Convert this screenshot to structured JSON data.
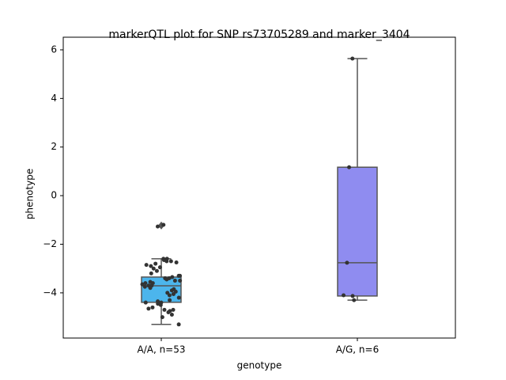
{
  "chart_data": {
    "type": "box",
    "title": "markerQTL plot for SNP rs73705289 and marker_3404",
    "xlabel": "genotype",
    "ylabel": "phenotype",
    "categories": [
      "A/A, n=53",
      "A/G, n=6"
    ],
    "ylim": [
      -5.86,
      6.52
    ],
    "yticks": [
      {
        "value": -4,
        "label": "−4"
      },
      {
        "value": -2,
        "label": "−2"
      },
      0,
      2,
      4,
      6
    ],
    "boxes": [
      {
        "whislo": -5.3,
        "q1": -4.39,
        "med": -3.71,
        "q3": -3.35,
        "whishi": -2.6,
        "fliers": [
          -1.23
        ],
        "color": "#4cb5ec"
      },
      {
        "whislo": -4.3,
        "q1": -4.13,
        "med": -2.76,
        "q3": 1.17,
        "whishi": 5.64,
        "fliers": [],
        "color": "#8f8cf0"
      }
    ],
    "points": [
      [
        -5.3,
        -5.0,
        -4.9,
        -4.8,
        -4.75,
        -4.7,
        -4.7,
        -4.65,
        -4.6,
        -4.5,
        -4.45,
        -4.4,
        -4.4,
        -4.35,
        -4.3,
        -4.2,
        -4.1,
        -4.05,
        -4.0,
        -3.95,
        -3.9,
        -3.85,
        -3.8,
        -3.75,
        -3.7,
        -3.7,
        -3.65,
        -3.6,
        -3.55,
        -3.5,
        -3.5,
        -3.45,
        -3.4,
        -3.4,
        -3.35,
        -3.3,
        -3.3,
        -3.2,
        -3.1,
        -3.0,
        -2.95,
        -2.9,
        -2.85,
        -2.8,
        -2.75,
        -2.7,
        -2.7,
        -2.65,
        -2.6,
        -2.6,
        -1.2,
        -1.27,
        -3.6
      ],
      [
        5.64,
        1.17,
        -2.76,
        -4.1,
        -4.3,
        -4.13
      ]
    ]
  }
}
